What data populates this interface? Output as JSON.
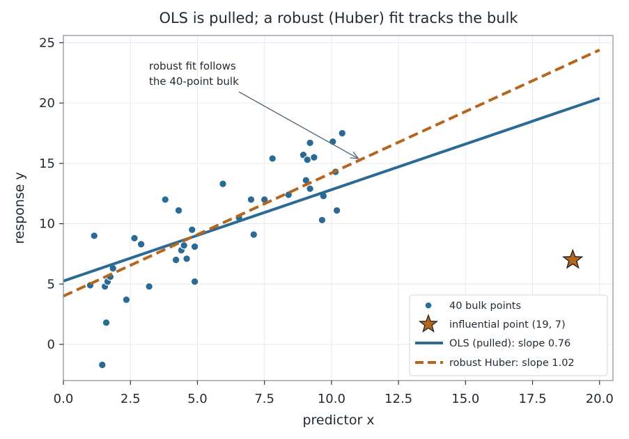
{
  "chart_data": {
    "type": "scatter",
    "title": "OLS is pulled; a robust (Huber) fit tracks the bulk",
    "xlabel": "predictor x",
    "ylabel": "response y",
    "xlim": [
      0,
      20.5
    ],
    "ylim": [
      -3,
      25.6
    ],
    "x_ticks": [
      "0.0",
      "2.5",
      "5.0",
      "7.5",
      "10.0",
      "12.5",
      "15.0",
      "17.5",
      "20.0"
    ],
    "y_ticks": [
      "0",
      "5",
      "10",
      "15",
      "20",
      "25"
    ],
    "grid": true,
    "legend_position": "bottom-right",
    "annotation": {
      "lines": [
        "robust fit follows",
        "the 40-point bulk"
      ],
      "arrow_to": [
        11.0,
        15.4
      ]
    },
    "series": [
      {
        "name": "40 bulk points",
        "kind": "scatter",
        "color": "#2b6a94",
        "points": [
          [
            1.0,
            4.9
          ],
          [
            1.15,
            9.0
          ],
          [
            1.45,
            -1.7
          ],
          [
            1.55,
            4.8
          ],
          [
            1.6,
            1.8
          ],
          [
            1.65,
            5.2
          ],
          [
            1.75,
            5.6
          ],
          [
            1.85,
            6.3
          ],
          [
            2.35,
            3.7
          ],
          [
            2.65,
            8.8
          ],
          [
            2.9,
            8.3
          ],
          [
            3.2,
            4.8
          ],
          [
            3.8,
            12.0
          ],
          [
            4.2,
            7.0
          ],
          [
            4.3,
            11.1
          ],
          [
            4.4,
            7.8
          ],
          [
            4.5,
            8.2
          ],
          [
            4.6,
            7.1
          ],
          [
            4.8,
            9.5
          ],
          [
            4.9,
            8.1
          ],
          [
            4.9,
            5.2
          ],
          [
            5.95,
            13.3
          ],
          [
            6.55,
            10.5
          ],
          [
            7.0,
            12.0
          ],
          [
            7.1,
            9.1
          ],
          [
            7.5,
            12.0
          ],
          [
            7.8,
            15.4
          ],
          [
            8.4,
            12.4
          ],
          [
            8.95,
            15.7
          ],
          [
            9.05,
            13.6
          ],
          [
            9.1,
            15.3
          ],
          [
            9.2,
            16.7
          ],
          [
            9.2,
            12.9
          ],
          [
            9.35,
            15.5
          ],
          [
            9.65,
            10.3
          ],
          [
            9.7,
            12.3
          ],
          [
            10.05,
            16.8
          ],
          [
            10.15,
            14.3
          ],
          [
            10.2,
            11.1
          ],
          [
            10.4,
            17.5
          ]
        ]
      },
      {
        "name": "influential point (19, 7)",
        "kind": "star",
        "color": "#b5651d",
        "points": [
          [
            19,
            7
          ]
        ]
      },
      {
        "name": "OLS (pulled): slope 0.76",
        "kind": "line",
        "style": "solid",
        "color": "#2b6a94",
        "intercept": 5.25,
        "slope": 0.757,
        "x_range": [
          0,
          20
        ]
      },
      {
        "name": "robust Huber: slope 1.02",
        "kind": "line",
        "style": "dashed",
        "color": "#b5651d",
        "intercept": 4.0,
        "slope": 1.02,
        "x_range": [
          0,
          20
        ]
      }
    ]
  }
}
